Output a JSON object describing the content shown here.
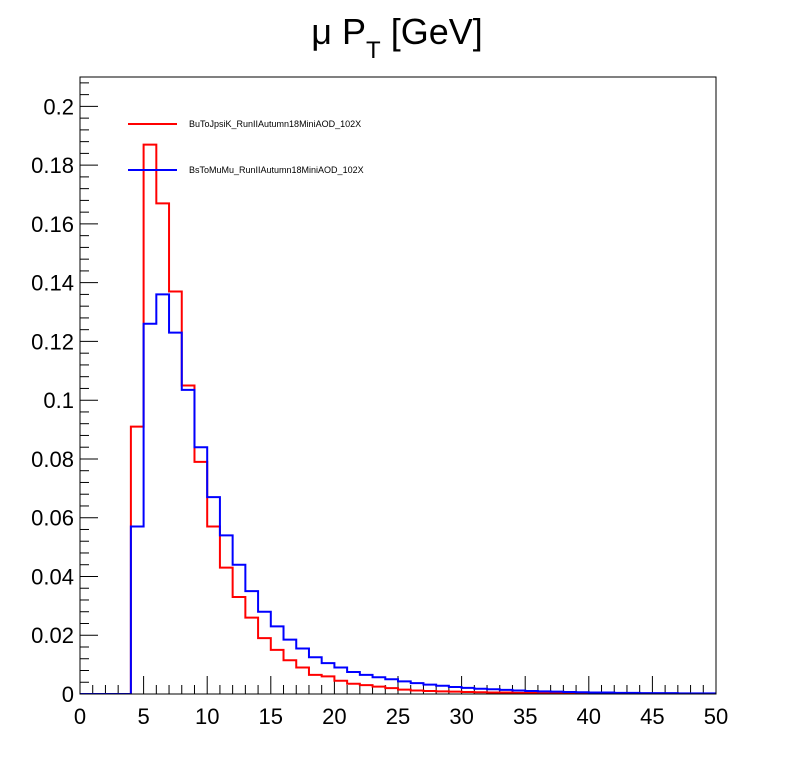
{
  "chart_data": {
    "type": "histogram",
    "title": "μ P_T [GeV]",
    "title_parts": {
      "main": "μ P",
      "sub": "T",
      "unit": "[GeV]"
    },
    "xlabel": "",
    "ylabel": "",
    "xlim": [
      0,
      50
    ],
    "ylim": [
      0,
      0.21
    ],
    "bin_width": 1,
    "x_ticks": [
      "0",
      "5",
      "10",
      "15",
      "20",
      "25",
      "30",
      "35",
      "40",
      "45",
      "50"
    ],
    "y_ticks": [
      "0",
      "0.02",
      "0.04",
      "0.06",
      "0.08",
      "0.1",
      "0.12",
      "0.14",
      "0.16",
      "0.18",
      "0.2"
    ],
    "grid": false,
    "legend_position": "top-left",
    "series": [
      {
        "name": "BuToJpsiK_RunIIAutumn18MiniAOD_102X",
        "color": "#ff0000",
        "bin_edges_start": 0,
        "values": [
          0,
          0,
          0,
          0,
          0.091,
          0.187,
          0.167,
          0.137,
          0.105,
          0.079,
          0.057,
          0.043,
          0.033,
          0.026,
          0.019,
          0.015,
          0.0115,
          0.009,
          0.0065,
          0.006,
          0.0045,
          0.0035,
          0.003,
          0.0025,
          0.002,
          0.0015,
          0.0012,
          0.001,
          0.0009,
          0.0008,
          0.0007,
          0.0006,
          0.0005,
          0.0005,
          0.0004,
          0.0004,
          0.0003,
          0.0003,
          0.0003,
          0.0002,
          0.0002,
          0.0002,
          0.0001,
          0.0001,
          0.0001,
          0.0001,
          0.0001,
          0.0001,
          0.0001,
          0.0001
        ]
      },
      {
        "name": "BsToMuMu_RunIIAutumn18MiniAOD_102X",
        "color": "#0000ff",
        "bin_edges_start": 0,
        "values": [
          0,
          0,
          0,
          0,
          0.057,
          0.126,
          0.136,
          0.123,
          0.1035,
          0.084,
          0.067,
          0.054,
          0.044,
          0.035,
          0.028,
          0.023,
          0.0185,
          0.0155,
          0.0125,
          0.0105,
          0.009,
          0.0075,
          0.0065,
          0.0057,
          0.005,
          0.0043,
          0.0037,
          0.0032,
          0.0028,
          0.0024,
          0.0021,
          0.0018,
          0.0016,
          0.0014,
          0.0012,
          0.001,
          0.0009,
          0.0008,
          0.0007,
          0.0006,
          0.0005,
          0.0005,
          0.0004,
          0.0004,
          0.0003,
          0.0003,
          0.0003,
          0.0002,
          0.0002,
          0.0002
        ]
      }
    ]
  }
}
